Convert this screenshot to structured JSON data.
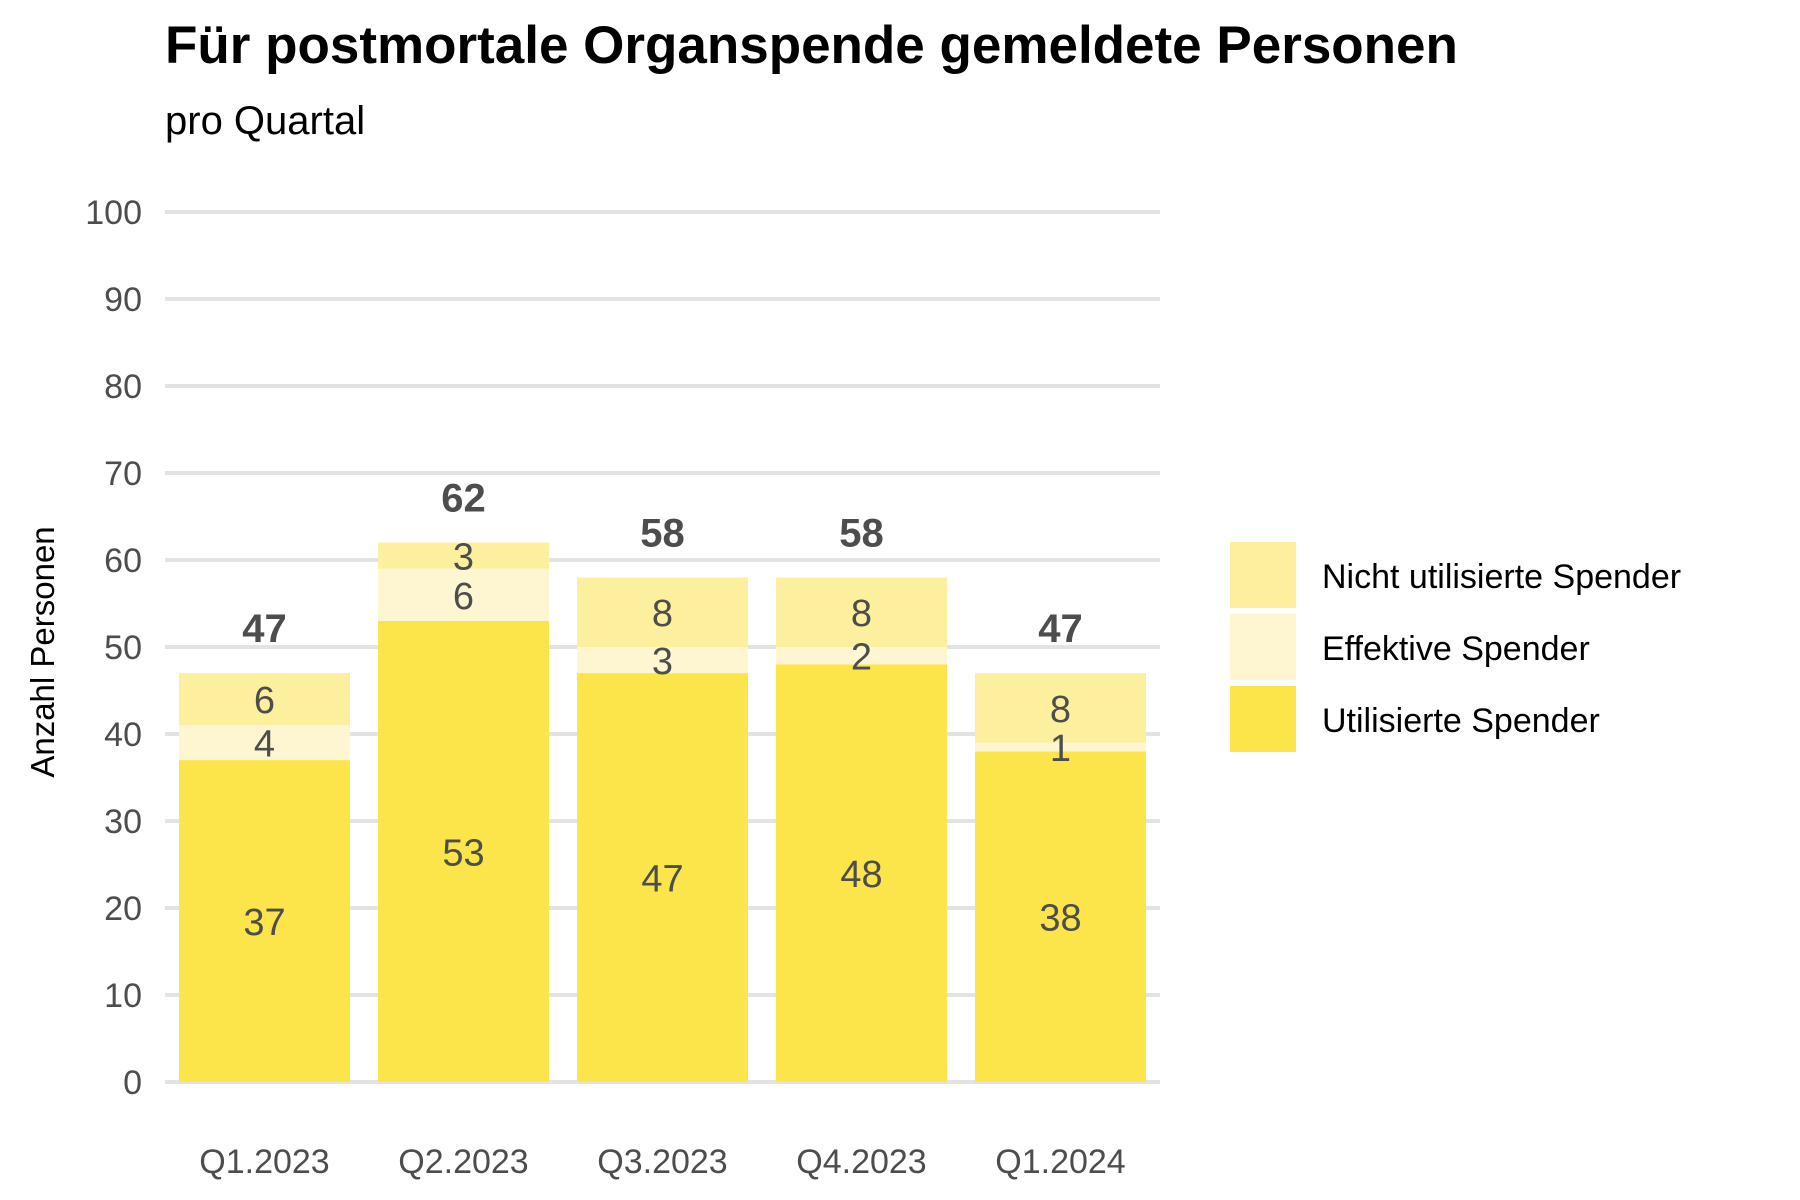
{
  "chart_data": {
    "type": "bar",
    "stacked": true,
    "title": "Für postmortale Organspende gemeldete Personen",
    "subtitle": "pro Quartal",
    "xlabel": "",
    "ylabel": "Anzahl Personen",
    "ylim": [
      0,
      100
    ],
    "yticks": [
      "0",
      "10",
      "20",
      "30",
      "40",
      "50",
      "60",
      "70",
      "80",
      "90",
      "100"
    ],
    "grid": "horizontal",
    "legend_position": "right",
    "categories": [
      "Q1.2023",
      "Q2.2023",
      "Q3.2023",
      "Q4.2023",
      "Q1.2024"
    ],
    "series": [
      {
        "name": "Utilisierte Spender",
        "values": [
          37,
          53,
          47,
          48,
          38
        ],
        "color": "#fbe54b"
      },
      {
        "name": "Effektive Spender",
        "values": [
          4,
          6,
          3,
          2,
          1
        ],
        "color": "#fdf6d1"
      },
      {
        "name": "Nicht utilisierte Spender",
        "values": [
          6,
          3,
          8,
          8,
          8
        ],
        "color": "#fcf09e"
      }
    ],
    "totals": [
      47,
      62,
      58,
      58,
      47
    ]
  }
}
